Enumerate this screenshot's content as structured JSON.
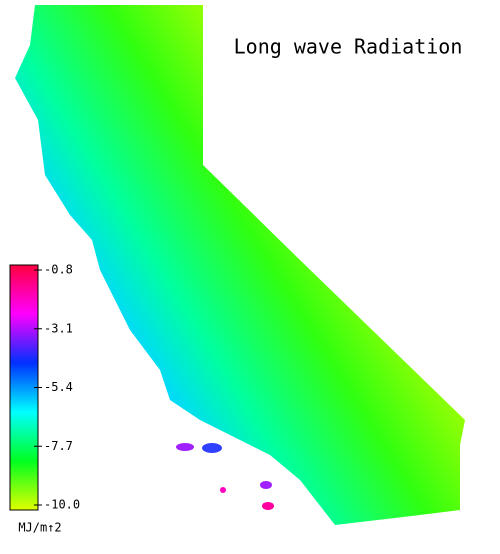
{
  "title": "Long wave Radiation",
  "colorbar": {
    "ticks": [
      -0.8,
      -3.1,
      -5.4,
      -7.7,
      {
        "value": -10,
        "label": "-10.0"
      }
    ],
    "lim": [
      -10,
      -0.8
    ],
    "unit": "MJ/m↑2",
    "colors": [
      "#e0ff00",
      "#00ff20",
      "#00ffff",
      "#0030ff",
      "#ff00ff",
      "#ff0040"
    ]
  }
}
